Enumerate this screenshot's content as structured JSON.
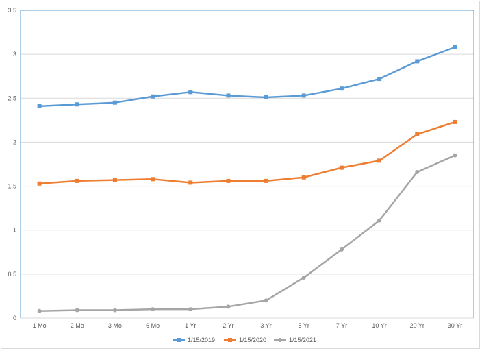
{
  "chart_data": {
    "type": "line",
    "title": "",
    "xlabel": "",
    "ylabel": "",
    "categories": [
      "1 Mo",
      "2 Mo",
      "3 Mo",
      "6 Mo",
      "1 Yr",
      "2 Yr",
      "3 Yr",
      "5 Yr",
      "7 Yr",
      "10 Yr",
      "20 Yr",
      "30 Yr"
    ],
    "ylim": [
      0,
      3.5
    ],
    "yticks": [
      "0",
      "0.5",
      "1",
      "1.5",
      "2",
      "2.5",
      "3",
      "3.5"
    ],
    "ytick_values": [
      0,
      0.5,
      1,
      1.5,
      2,
      2.5,
      3,
      3.5
    ],
    "grid": true,
    "legend_position": "bottom",
    "series": [
      {
        "name": "1/15/2019",
        "color": "#5b9bd5",
        "marker": "square",
        "values": [
          2.41,
          2.43,
          2.45,
          2.52,
          2.57,
          2.53,
          2.51,
          2.53,
          2.61,
          2.72,
          2.92,
          3.08
        ]
      },
      {
        "name": "1/15/2020",
        "color": "#ed7d31",
        "marker": "square",
        "values": [
          1.53,
          1.56,
          1.57,
          1.58,
          1.54,
          1.56,
          1.56,
          1.6,
          1.71,
          1.79,
          2.09,
          2.23
        ]
      },
      {
        "name": "1/15/2021",
        "color": "#a5a5a5",
        "marker": "circle",
        "values": [
          0.08,
          0.09,
          0.09,
          0.1,
          0.1,
          0.13,
          0.2,
          0.46,
          0.78,
          1.11,
          1.66,
          1.85
        ]
      }
    ]
  }
}
